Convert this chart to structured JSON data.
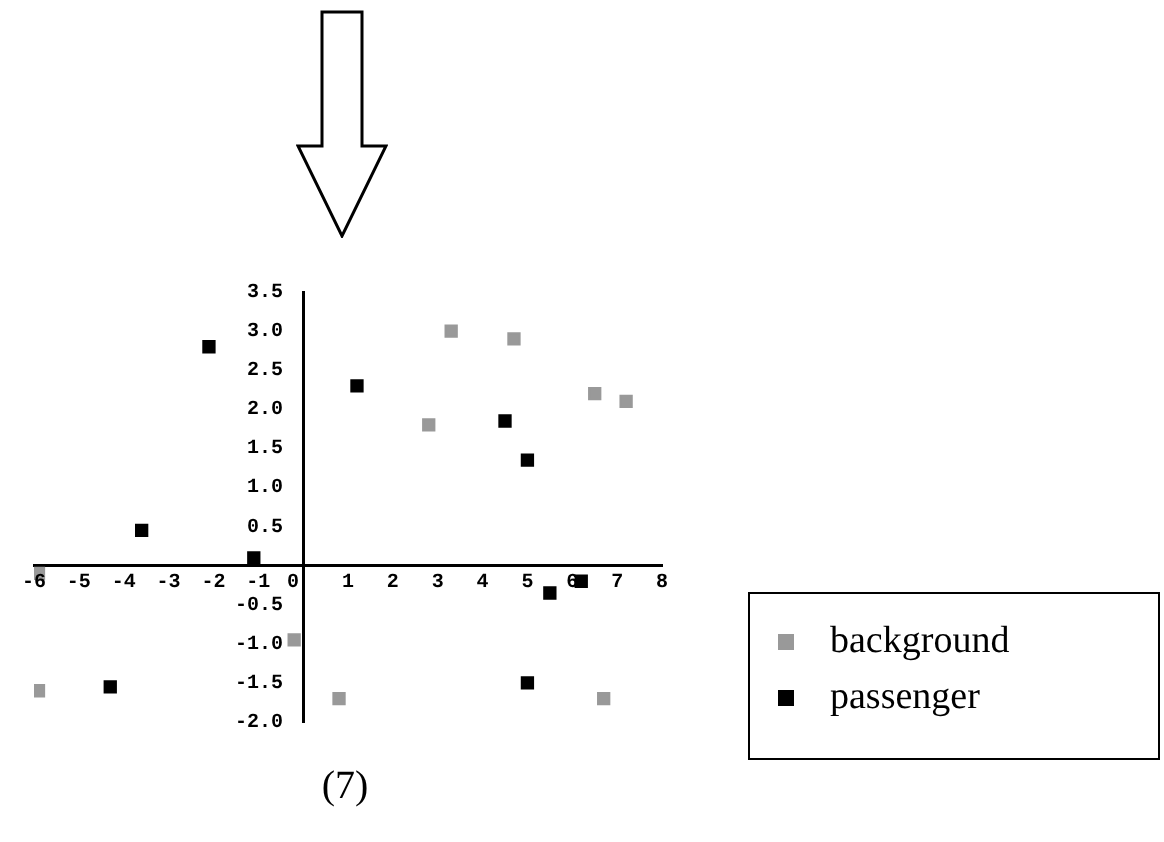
{
  "chart_data": {
    "type": "scatter",
    "marker": "square",
    "legend": "right",
    "grid": false,
    "xlim": [
      -6,
      8
    ],
    "xticks": [
      -6,
      -5,
      -4,
      -3,
      -2,
      -1,
      0,
      1,
      2,
      3,
      4,
      5,
      6,
      7,
      8
    ],
    "ylim": [
      -2,
      3.5
    ],
    "yticks": [
      {
        "value": -2,
        "label": "-2.0"
      },
      {
        "value": -1.5,
        "label": "-1.5"
      },
      {
        "value": -1,
        "label": "-1.0"
      },
      {
        "value": -0.5,
        "label": "-0.5"
      },
      {
        "value": 0,
        "label": null
      },
      {
        "value": 0.5,
        "label": "0.5"
      },
      {
        "value": 1,
        "label": "1.0"
      },
      {
        "value": 1.5,
        "label": "1.5"
      },
      {
        "value": 2,
        "label": "2.0"
      },
      {
        "value": 2.5,
        "label": "2.5"
      },
      {
        "value": 3,
        "label": "3.0"
      },
      {
        "value": 3.5,
        "label": "3.5"
      }
    ],
    "series": [
      {
        "name": "background",
        "color": "#999999",
        "x": [
          -5.9,
          -5.9,
          -0.2,
          0.8,
          6.7,
          3.3,
          4.7,
          2.8,
          6.5,
          7.2
        ],
        "values": [
          -0.1,
          -1.6,
          -0.95,
          -1.7,
          -1.7,
          3.0,
          2.9,
          1.8,
          2.2,
          2.1
        ]
      },
      {
        "name": "passenger",
        "color": "#000000",
        "x": [
          -2.1,
          1.2,
          4.5,
          5.0,
          -3.6,
          -1.1,
          5.5,
          6.2,
          -4.3,
          5.0
        ],
        "values": [
          2.8,
          2.3,
          1.85,
          1.35,
          0.45,
          0.1,
          -0.35,
          -0.2,
          -1.55,
          -1.5
        ]
      }
    ],
    "annotations": [
      "(7)"
    ]
  }
}
